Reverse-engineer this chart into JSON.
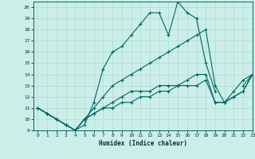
{
  "xlabel": "Humidex (Indice chaleur)",
  "background_color": "#cceee8",
  "grid_color": "#aaddcc",
  "line_color": "#006666",
  "xlim": [
    -0.5,
    23
  ],
  "ylim": [
    9,
    20.5
  ],
  "xticks": [
    0,
    1,
    2,
    3,
    4,
    5,
    6,
    7,
    8,
    9,
    10,
    11,
    12,
    13,
    14,
    15,
    16,
    17,
    18,
    19,
    20,
    21,
    22,
    23
  ],
  "yticks": [
    9,
    10,
    11,
    12,
    13,
    14,
    15,
    16,
    17,
    18,
    19,
    20
  ],
  "lines": [
    {
      "x": [
        0,
        1,
        2,
        3,
        4,
        5,
        6,
        7,
        8,
        9,
        10,
        11,
        12,
        13,
        14,
        15,
        16,
        17,
        18,
        19,
        20,
        21,
        22,
        23
      ],
      "y": [
        11,
        10.5,
        10,
        9.5,
        9,
        9.5,
        11.5,
        14.5,
        16,
        16.5,
        17.5,
        18.5,
        19.5,
        19.5,
        17.5,
        20.5,
        19.5,
        19,
        15,
        12.5,
        null,
        null,
        13,
        14
      ]
    },
    {
      "x": [
        0,
        1,
        2,
        3,
        4,
        5,
        6,
        7,
        8,
        9,
        10,
        11,
        12,
        13,
        14,
        15,
        16,
        17,
        18,
        19,
        20,
        21,
        22,
        23
      ],
      "y": [
        11,
        10.5,
        10,
        9.5,
        9,
        10,
        11,
        12,
        13,
        13.5,
        14,
        14.5,
        15,
        15.5,
        16,
        16.5,
        17,
        17.5,
        18,
        13,
        11.5,
        12.5,
        13.5,
        14
      ]
    },
    {
      "x": [
        0,
        1,
        2,
        3,
        4,
        5,
        6,
        7,
        8,
        9,
        10,
        11,
        12,
        13,
        14,
        15,
        16,
        17,
        18,
        19,
        20,
        21,
        22,
        23
      ],
      "y": [
        11,
        10.5,
        10,
        9.5,
        9,
        10,
        10.5,
        11,
        11.5,
        12,
        12.5,
        12.5,
        12.5,
        13,
        13,
        13,
        13.5,
        14,
        14,
        11.5,
        11.5,
        12,
        12.5,
        14
      ]
    },
    {
      "x": [
        0,
        1,
        2,
        3,
        4,
        5,
        6,
        7,
        8,
        9,
        10,
        11,
        12,
        13,
        14,
        15,
        16,
        17,
        18,
        19,
        20,
        21,
        22,
        23
      ],
      "y": [
        11,
        10.5,
        10,
        9.5,
        9,
        10,
        10.5,
        11,
        11,
        11.5,
        11.5,
        12,
        12,
        12.5,
        12.5,
        13,
        13,
        13,
        13.5,
        11.5,
        11.5,
        12,
        12.5,
        14
      ]
    }
  ]
}
